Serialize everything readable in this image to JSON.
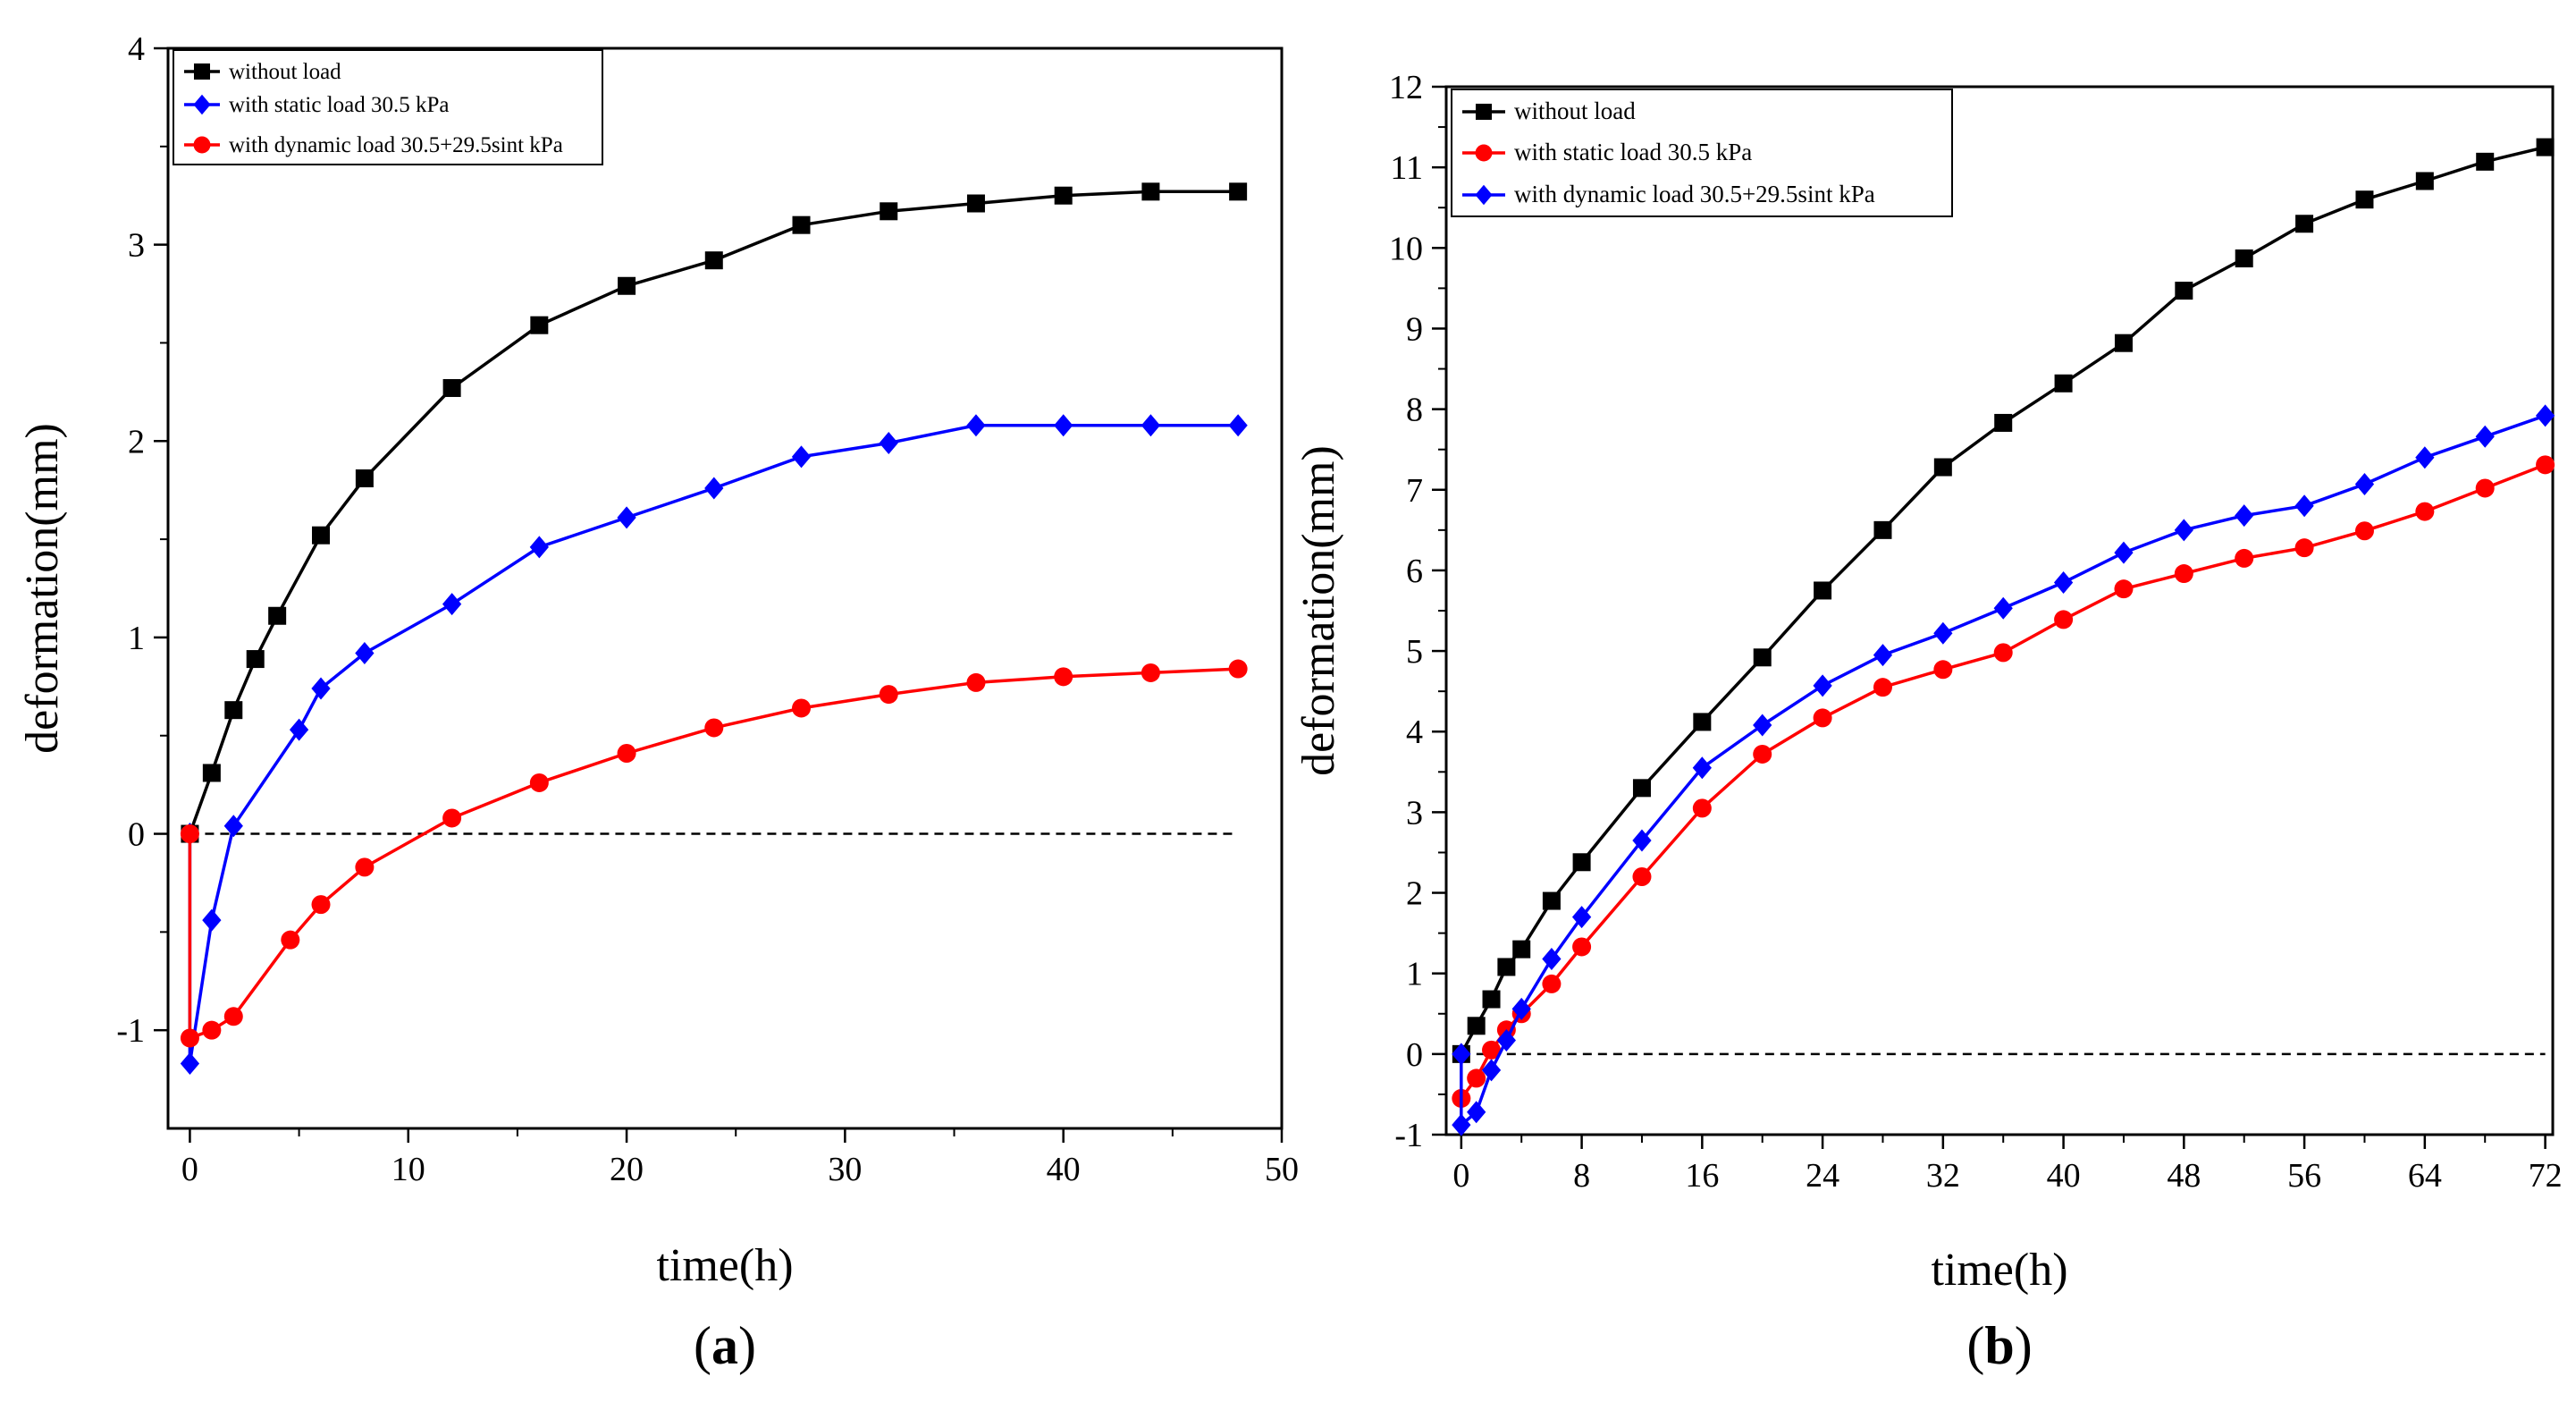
{
  "chart_data": [
    {
      "type": "line",
      "panel_label": "a",
      "xlabel": "time(h)",
      "ylabel": "deformation(mm)",
      "xlim": [
        -1,
        50
      ],
      "ylim": [
        -1.5,
        4
      ],
      "xticks": [
        0,
        10,
        20,
        30,
        40,
        50
      ],
      "yticks": [
        -1,
        0,
        1,
        2,
        3,
        4
      ],
      "reference_line": {
        "y": 0,
        "x_from": 0,
        "x_to": 48,
        "style": "dashed"
      },
      "legend_position": "top-left",
      "series": [
        {
          "name": "without load",
          "color": "#000000",
          "marker": "square",
          "x": [
            0,
            1,
            2,
            3,
            4,
            6,
            8,
            12,
            16,
            20,
            24,
            28,
            32,
            36,
            40,
            44,
            48
          ],
          "y": [
            0,
            0.31,
            0.63,
            0.89,
            1.11,
            1.52,
            1.81,
            2.27,
            2.59,
            2.79,
            2.92,
            3.1,
            3.17,
            3.21,
            3.25,
            3.27,
            3.27
          ]
        },
        {
          "name": "with static load 30.5 kPa",
          "color": "#0000ff",
          "marker": "diamond",
          "x": [
            0,
            0,
            1,
            2,
            5,
            6,
            8,
            12,
            16,
            20,
            24,
            28,
            32,
            36,
            40,
            44,
            48
          ],
          "y": [
            0,
            -1.17,
            -0.44,
            0.04,
            0.53,
            0.74,
            0.92,
            1.17,
            1.46,
            1.61,
            1.76,
            1.92,
            1.99,
            2.08,
            2.08,
            2.08,
            2.08
          ]
        },
        {
          "name": "with dynamic load 30.5+29.5sint kPa",
          "color": "#ff0000",
          "marker": "circle",
          "x": [
            0,
            0,
            1,
            2,
            4.6,
            6,
            8,
            12,
            16,
            20,
            24,
            28,
            32,
            36,
            40,
            44,
            48
          ],
          "y": [
            0,
            -1.04,
            -1.0,
            -0.93,
            -0.54,
            -0.36,
            -0.17,
            0.08,
            0.26,
            0.41,
            0.54,
            0.64,
            0.71,
            0.77,
            0.8,
            0.82,
            0.84
          ]
        }
      ]
    },
    {
      "type": "line",
      "panel_label": "b",
      "xlabel": "time(h)",
      "ylabel": "deformation(mm)",
      "xlim": [
        -1,
        72.5
      ],
      "ylim": [
        -1,
        12
      ],
      "xticks": [
        0,
        8,
        16,
        24,
        32,
        40,
        48,
        56,
        64,
        72
      ],
      "yticks": [
        -1,
        0,
        1,
        2,
        3,
        4,
        5,
        6,
        7,
        8,
        9,
        10,
        11,
        12
      ],
      "reference_line": {
        "y": 0,
        "x_from": 0,
        "x_to": 72,
        "style": "dashed"
      },
      "legend_position": "top-left",
      "series": [
        {
          "name": "without load",
          "color": "#000000",
          "marker": "square",
          "x": [
            0,
            1,
            2,
            3,
            4,
            6,
            8,
            12,
            16,
            20,
            24,
            28,
            32,
            36,
            40,
            44,
            48,
            52,
            56,
            60,
            64,
            68,
            72
          ],
          "y": [
            0,
            0.35,
            0.68,
            1.08,
            1.3,
            1.9,
            2.38,
            3.3,
            4.12,
            4.92,
            5.75,
            6.5,
            7.28,
            7.83,
            8.32,
            8.82,
            9.47,
            9.87,
            10.3,
            10.6,
            10.83,
            11.07,
            11.25
          ]
        },
        {
          "name": "with static load 30.5 kPa",
          "color": "#ff0000",
          "marker": "circle",
          "x": [
            0,
            1,
            2,
            3,
            4,
            6,
            8,
            12,
            16,
            20,
            24,
            28,
            32,
            36,
            40,
            44,
            48,
            52,
            56,
            60,
            64,
            68,
            72
          ],
          "y": [
            -0.55,
            -0.3,
            0.05,
            0.3,
            0.5,
            0.87,
            1.33,
            2.2,
            3.05,
            3.72,
            4.17,
            4.55,
            4.77,
            4.98,
            5.39,
            5.77,
            5.96,
            6.15,
            6.28,
            6.49,
            6.73,
            7.02,
            7.31
          ]
        },
        {
          "name": "with dynamic load 30.5+29.5sint kPa",
          "color": "#0000ff",
          "marker": "diamond",
          "x": [
            0,
            0,
            1,
            2,
            3,
            4,
            6,
            8,
            12,
            16,
            20,
            24,
            28,
            32,
            36,
            40,
            44,
            48,
            52,
            56,
            60,
            64,
            68,
            72
          ],
          "y": [
            0,
            -0.88,
            -0.72,
            -0.2,
            0.17,
            0.56,
            1.18,
            1.7,
            2.65,
            3.55,
            4.08,
            4.57,
            4.95,
            5.22,
            5.53,
            5.85,
            6.22,
            6.5,
            6.68,
            6.8,
            7.07,
            7.4,
            7.66,
            7.92
          ]
        }
      ]
    }
  ]
}
